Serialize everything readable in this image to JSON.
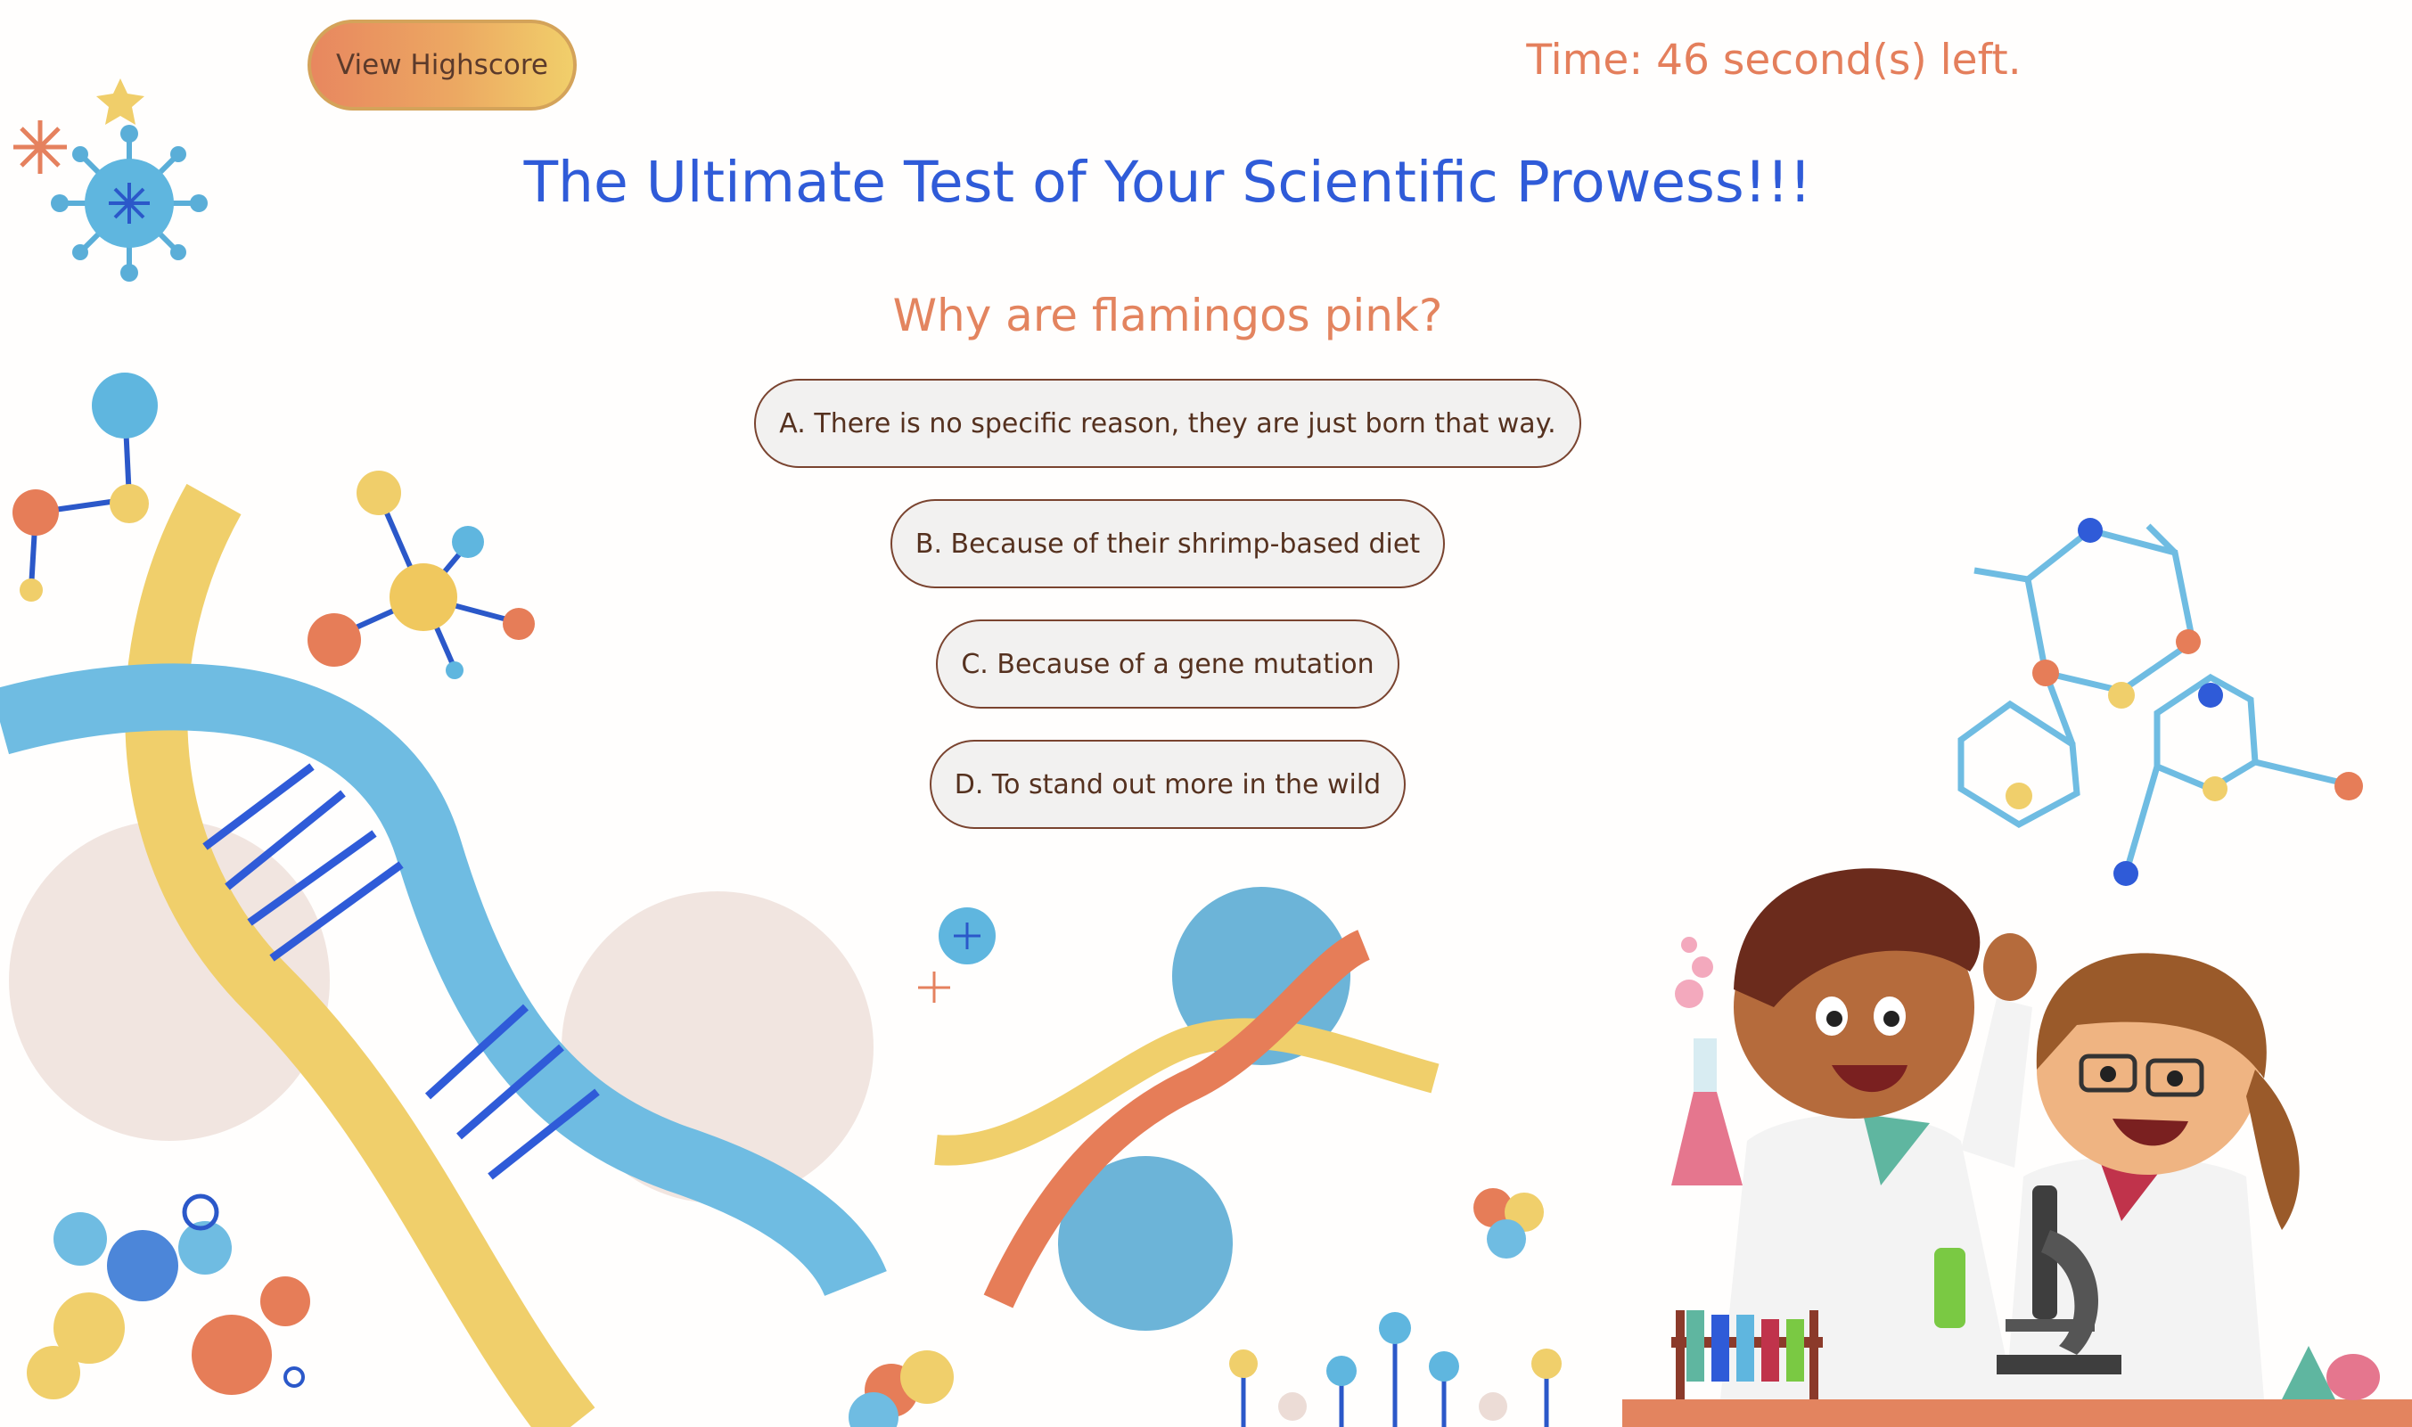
{
  "header": {
    "highscore_label": "View Highscore",
    "timer_text": "Time: 46 second(s) left."
  },
  "quiz": {
    "title": "The Ultimate Test of Your Scientific Prowess!!!",
    "question": "Why are flamingos pink?",
    "answers": [
      {
        "label": "A. There is no specific reason, they are just born that way."
      },
      {
        "label": "B. Because of their shrimp-based diet"
      },
      {
        "label": "C. Because of a gene mutation"
      },
      {
        "label": "D. To stand out more in the wild"
      }
    ]
  },
  "colors": {
    "title": "#2f5bd8",
    "question": "#e3845f",
    "timer": "#e47f5c",
    "button_gradient_start": "#e8875f",
    "button_gradient_end": "#f1cf6a",
    "answer_border": "#7a4430",
    "answer_bg": "#f2f1f0"
  },
  "illustrations": [
    "virus-icon",
    "molecule-icon",
    "dna-helix-icon",
    "hexagon-molecule-icon",
    "scientist-kids-illustration",
    "microscope-icon",
    "flask-icon",
    "test-tubes-icon"
  ]
}
